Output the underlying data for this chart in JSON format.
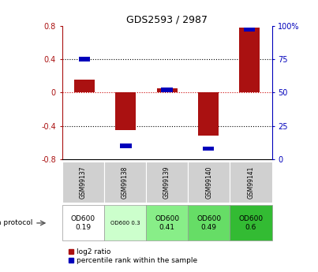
{
  "title": "GDS2593 / 2987",
  "samples": [
    "GSM99137",
    "GSM99138",
    "GSM99139",
    "GSM99140",
    "GSM99141"
  ],
  "log2_ratio": [
    0.15,
    -0.45,
    0.05,
    -0.52,
    0.78
  ],
  "percentile_rank": [
    75,
    10,
    52,
    8,
    97
  ],
  "ylim_left": [
    -0.8,
    0.8
  ],
  "ylim_right": [
    0,
    100
  ],
  "yticks_left": [
    -0.8,
    -0.4,
    0.0,
    0.4,
    0.8
  ],
  "yticks_right": [
    0,
    25,
    50,
    75,
    100
  ],
  "bar_color_red": "#aa1111",
  "bar_color_blue": "#0000bb",
  "zero_line_color": "#cc0000",
  "growth_protocol_labels": [
    "OD600\n0.19",
    "OD600 0.3",
    "OD600\n0.41",
    "OD600\n0.49",
    "OD600\n0.6"
  ],
  "proto_bg": [
    "#ffffff",
    "#ccffcc",
    "#88ee88",
    "#66dd66",
    "#33bb33"
  ],
  "sample_label_bg": "#d0d0d0",
  "legend_red_label": "log2 ratio",
  "legend_blue_label": "percentile rank within the sample",
  "bar_width": 0.5
}
